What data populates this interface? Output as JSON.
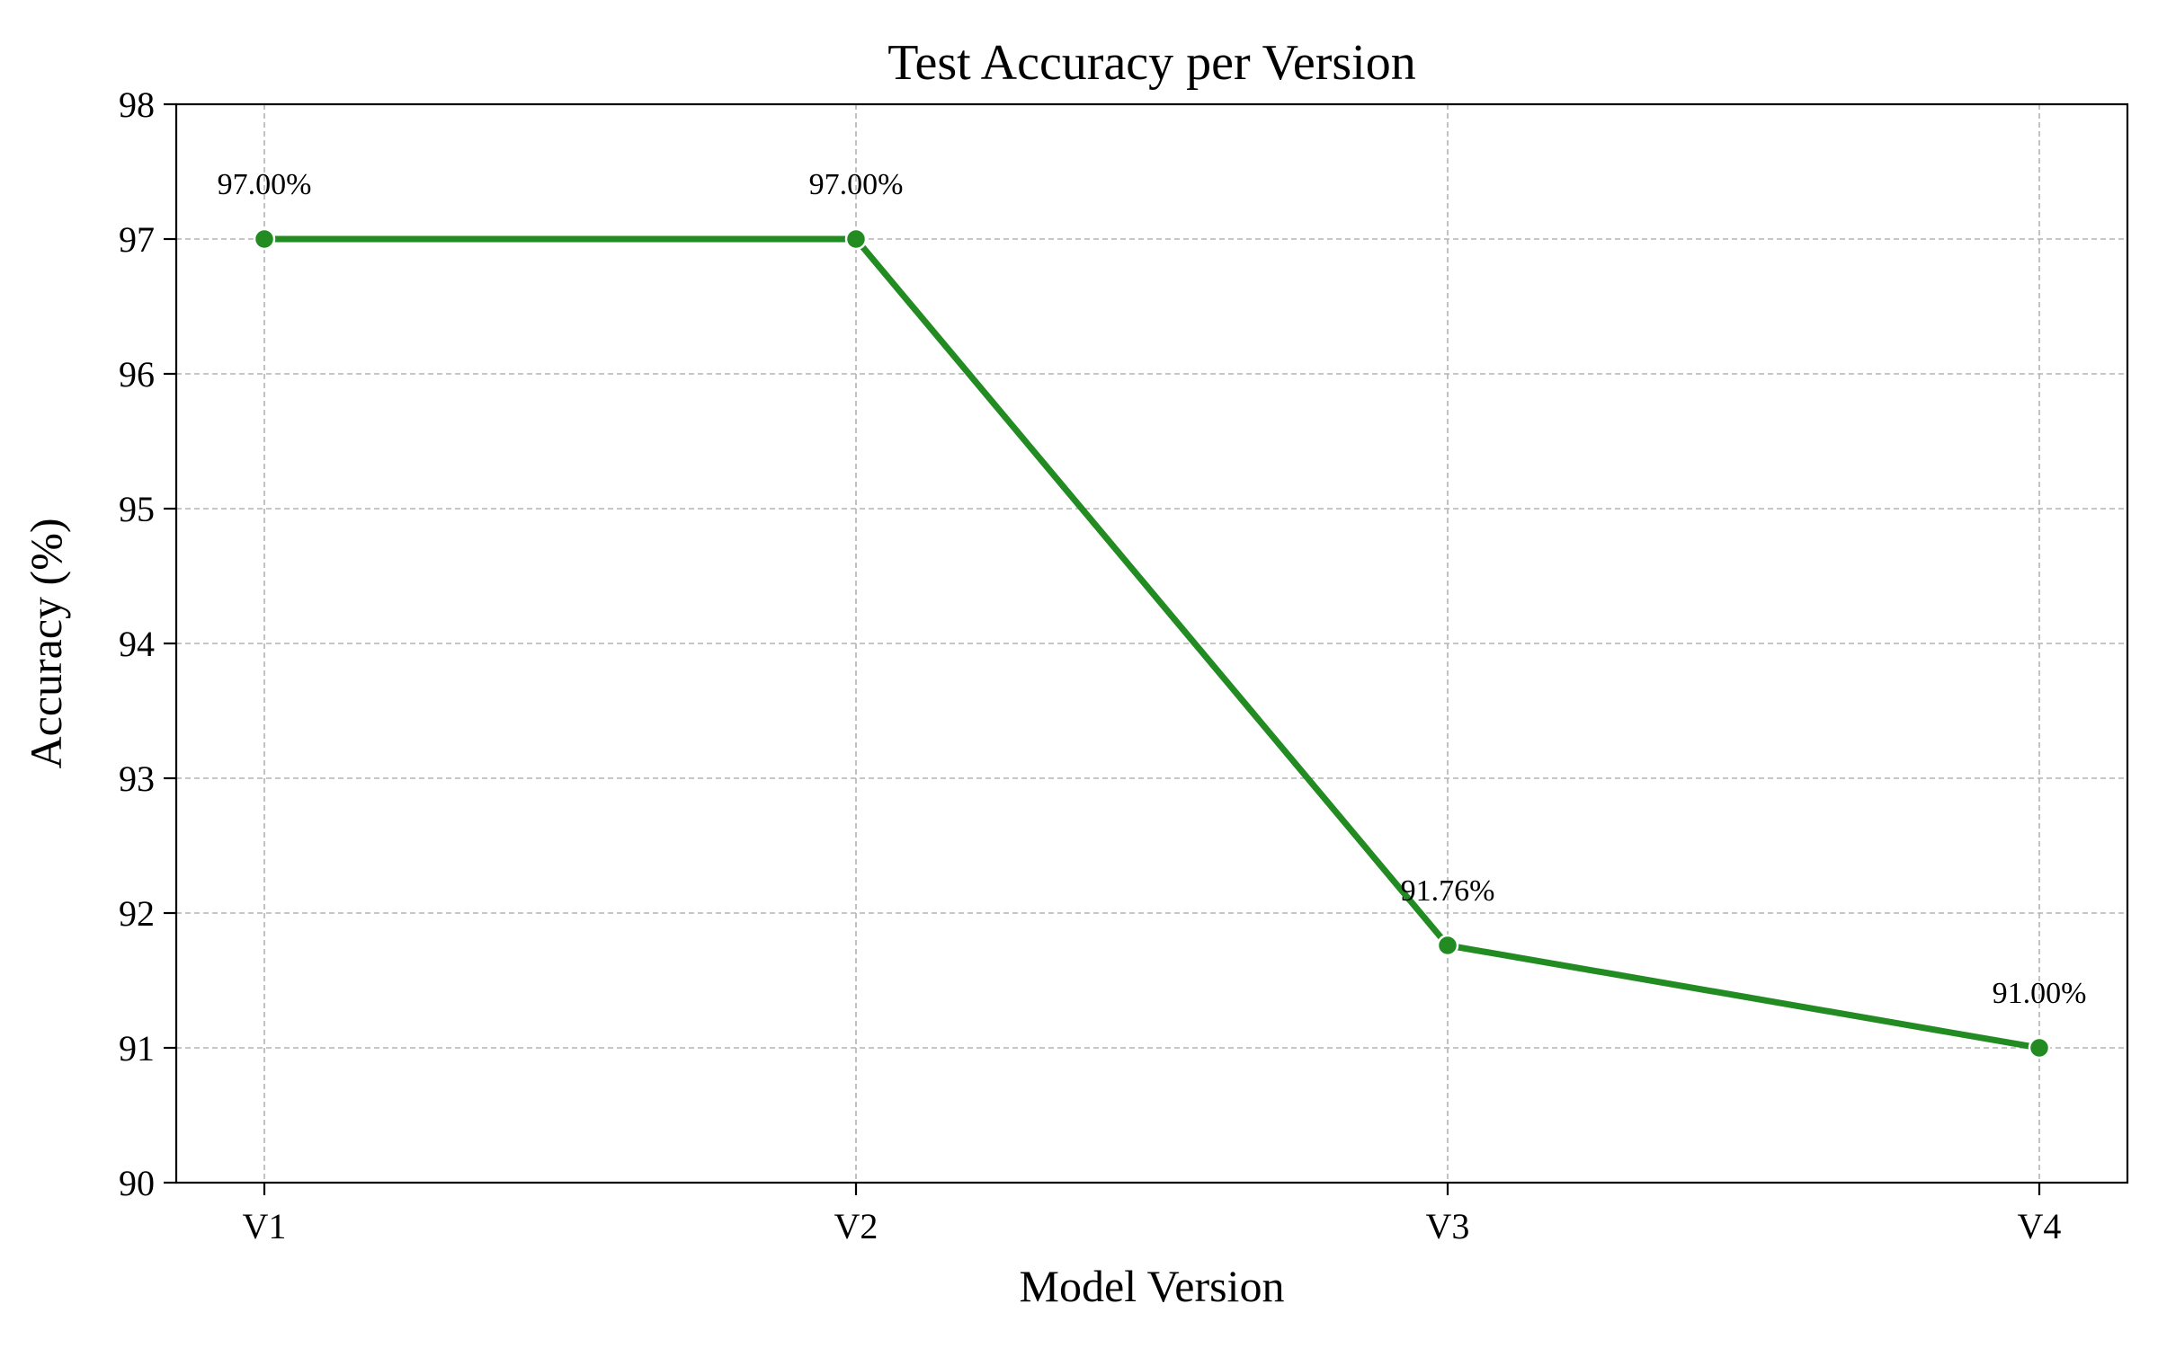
{
  "chart_data": {
    "type": "line",
    "title": "Test Accuracy per Version",
    "xlabel": "Model Version",
    "ylabel": "Accuracy (%)",
    "categories": [
      "V1",
      "V2",
      "V3",
      "V4"
    ],
    "series": [
      {
        "values": [
          97.0,
          97.0,
          91.76,
          91.0
        ],
        "labels": [
          "97.00%",
          "97.00%",
          "91.76%",
          "91.00%"
        ]
      }
    ],
    "ylim": [
      90,
      98
    ],
    "yticks": [
      "90",
      "91",
      "92",
      "93",
      "94",
      "95",
      "96",
      "97",
      "98"
    ],
    "grid": true,
    "line_color": "#228B22",
    "marker_edge_color": "#ffffff"
  }
}
